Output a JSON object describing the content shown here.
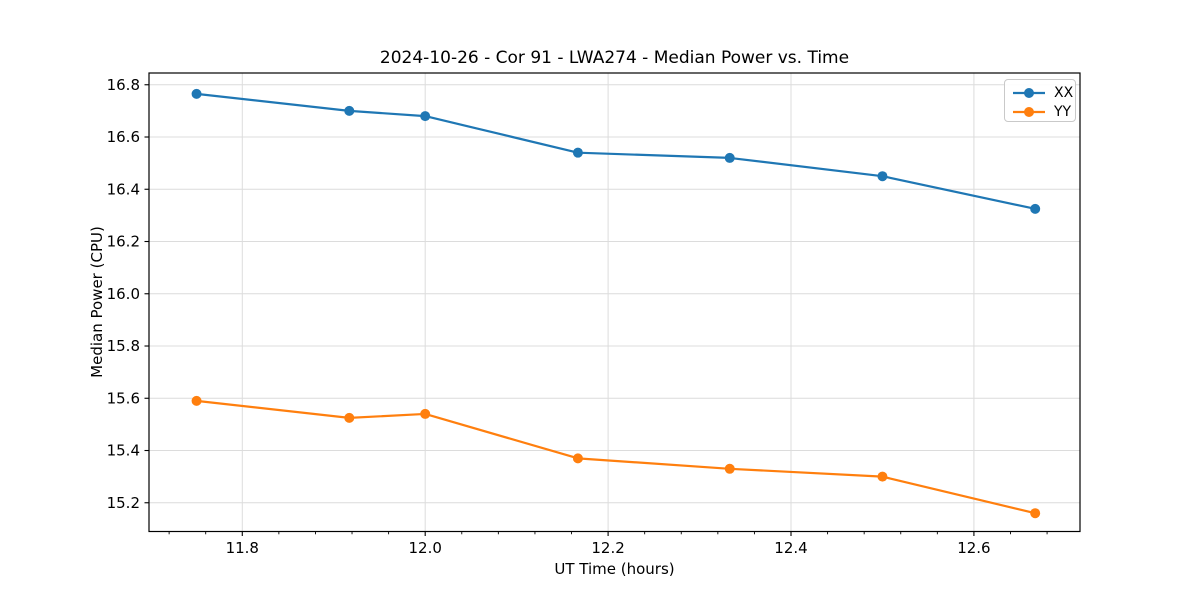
{
  "chart_data": {
    "type": "line",
    "title": "2024-10-26 - Cor 91 - LWA274 - Median Power vs. Time",
    "xlabel": "UT Time (hours)",
    "ylabel": "Median Power (CPU)",
    "xlim": [
      11.698,
      12.716
    ],
    "ylim": [
      15.09,
      16.845
    ],
    "grid": true,
    "grid_color": "#dcdcdc",
    "spine_color": "#000000",
    "legend_position": "upper right",
    "x_major_ticks": [
      11.8,
      12.0,
      12.2,
      12.4,
      12.6
    ],
    "x_major_labels": [
      "11.8",
      "12.0",
      "12.2",
      "12.4",
      "12.6"
    ],
    "x_minor_ticks": [
      11.72,
      11.76,
      11.84,
      11.88,
      11.92,
      11.96,
      12.04,
      12.08,
      12.12,
      12.16,
      12.24,
      12.28,
      12.32,
      12.36,
      12.44,
      12.48,
      12.52,
      12.56,
      12.64,
      12.68
    ],
    "y_major_ticks": [
      15.2,
      15.4,
      15.6,
      15.8,
      16.0,
      16.2,
      16.4,
      16.6,
      16.8
    ],
    "y_major_labels": [
      "15.2",
      "15.4",
      "15.6",
      "15.8",
      "16.0",
      "16.2",
      "16.4",
      "16.6",
      "16.8"
    ],
    "x": [
      11.75,
      11.917,
      12.0,
      12.167,
      12.333,
      12.5,
      12.667
    ],
    "series": [
      {
        "name": "XX",
        "color": "#1f77b4",
        "marker": "circle",
        "values": [
          16.765,
          16.7,
          16.68,
          16.54,
          16.52,
          16.45,
          16.325
        ]
      },
      {
        "name": "YY",
        "color": "#ff7f0e",
        "marker": "circle",
        "values": [
          15.59,
          15.525,
          15.54,
          15.37,
          15.33,
          15.3,
          15.16
        ]
      }
    ]
  }
}
